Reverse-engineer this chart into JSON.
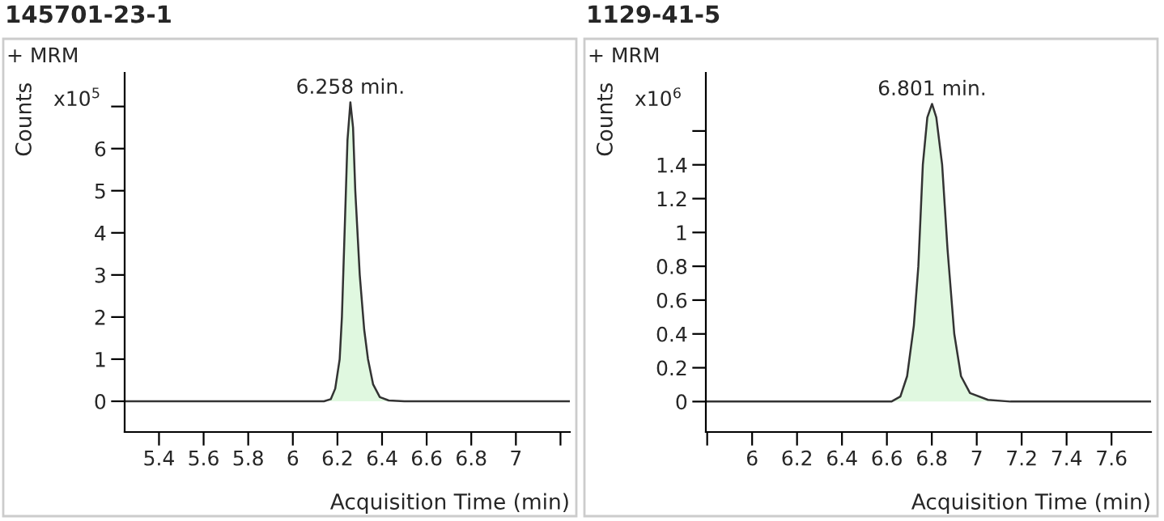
{
  "chart_data": [
    {
      "type": "area",
      "title": "145701-23-1",
      "subtitle": "+ MRM",
      "ylabel": "Counts",
      "xlabel": "Acquisition Time (min)",
      "annotations": [
        "x10$^{5}$",
        {
          "text": "6.258 min.",
          "x": 6.258,
          "y": 7.1
        }
      ],
      "series": [
        {
          "color": "#e0f8e0",
          "x": [
            5.246,
            6.14,
            6.17,
            6.19,
            6.21,
            6.22,
            6.235,
            6.245,
            6.258,
            6.27,
            6.28,
            6.3,
            6.32,
            6.337,
            6.36,
            6.39,
            6.43,
            6.5,
            7.242
          ],
          "values": [
            0,
            0,
            0.05,
            0.3,
            1,
            2,
            4.5,
            6.2,
            7.1,
            6.5,
            5,
            3,
            1.7,
            1,
            0.4,
            0.1,
            0.02,
            0,
            0
          ]
        }
      ],
      "xlim": [
        5.246,
        7.242
      ],
      "xticks": [
        5.4,
        5.6,
        5.8,
        6,
        6.2,
        6.4,
        6.6,
        6.8,
        7,
        {
          "value": 7.2,
          "label": null
        }
      ],
      "ylim": [
        -0.73,
        7.8
      ],
      "yticks": [
        0,
        1,
        2,
        3,
        4,
        5,
        6,
        {
          "value": 7,
          "label": null
        }
      ],
      "grid": false,
      "legend": false
    },
    {
      "type": "area",
      "title": "1129-41-5",
      "subtitle": "+ MRM",
      "ylabel": "Counts",
      "xlabel": "Acquisition Time (min)",
      "annotations": [
        "x10$^{6}$",
        {
          "text": "6.801 min.",
          "x": 6.801,
          "y": 1.76
        }
      ],
      "series": [
        {
          "color": "#e0f8e0",
          "x": [
            5.794,
            6.62,
            6.66,
            6.69,
            6.72,
            6.74,
            6.76,
            6.78,
            6.801,
            6.82,
            6.846,
            6.87,
            6.9,
            6.93,
            6.97,
            7.05,
            7.15,
            7.776
          ],
          "values": [
            0,
            0,
            0.03,
            0.15,
            0.45,
            0.8,
            1.4,
            1.68,
            1.76,
            1.68,
            1.4,
            0.9,
            0.4,
            0.15,
            0.05,
            0.01,
            0,
            0
          ]
        }
      ],
      "xlim": [
        5.794,
        7.776
      ],
      "xticks": [
        {
          "value": 5.8,
          "label": null
        },
        6,
        6.2,
        6.4,
        6.6,
        6.8,
        7,
        7.2,
        7.4,
        7.6
      ],
      "ylim": [
        -0.18,
        1.944
      ],
      "yticks": [
        0,
        0.2,
        0.4,
        0.6,
        0.8,
        1,
        1.2,
        1.4,
        {
          "value": 1.6,
          "label": null
        }
      ],
      "grid": false,
      "legend": false
    }
  ]
}
